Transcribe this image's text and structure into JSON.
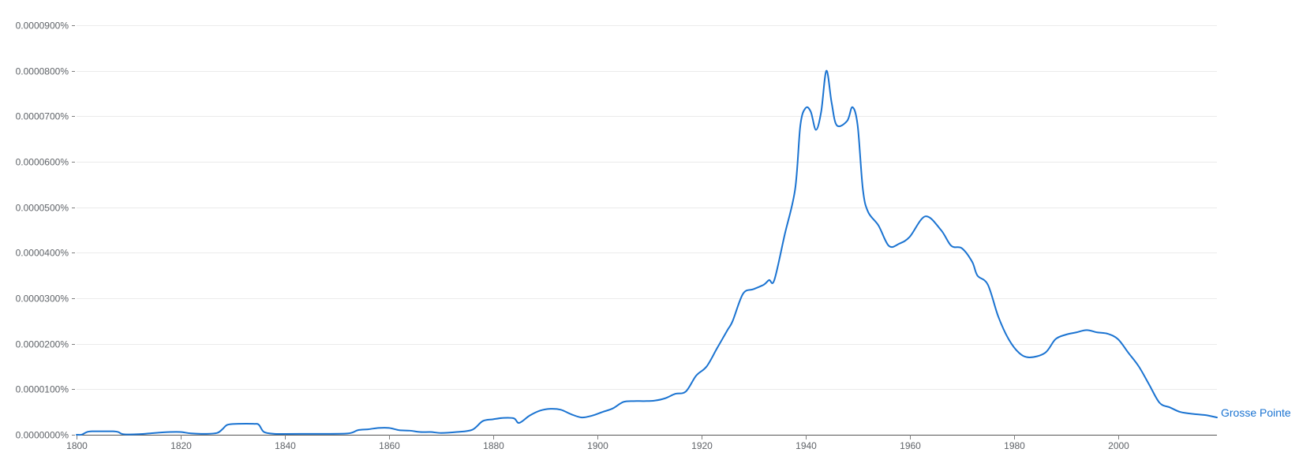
{
  "chart_data": {
    "type": "line",
    "title": "",
    "xlabel": "",
    "ylabel": "",
    "xlim": [
      1800,
      2019
    ],
    "ylim": [
      0,
      9e-07
    ],
    "x_ticks": [
      1800,
      1820,
      1840,
      1860,
      1880,
      1900,
      1920,
      1940,
      1960,
      1980,
      2000
    ],
    "x_tick_labels": [
      "1800",
      "1820",
      "1840",
      "1860",
      "1880",
      "1900",
      "1920",
      "1940",
      "1960",
      "1980",
      "2000"
    ],
    "y_ticks": [
      0,
      1e-07,
      2e-07,
      3e-07,
      4e-07,
      5e-07,
      6e-07,
      7e-07,
      8e-07,
      9e-07
    ],
    "y_tick_labels": [
      "0.0000000%",
      "0.0000100%",
      "0.0000200%",
      "0.0000300%",
      "0.0000400%",
      "0.0000500%",
      "0.0000600%",
      "0.0000700%",
      "0.0000800%",
      "0.0000900%"
    ],
    "grid": true,
    "legend": "series label at right end of line",
    "series": [
      {
        "name": "Grosse Pointe",
        "color": "#1a73d1",
        "points": [
          [
            1800,
            0.0
          ],
          [
            1801,
            3e-10
          ],
          [
            1802,
            6e-09
          ],
          [
            1803,
            7.5e-09
          ],
          [
            1805,
            7.5e-09
          ],
          [
            1807,
            7.5e-09
          ],
          [
            1808,
            6e-09
          ],
          [
            1809,
            1.2e-09
          ],
          [
            1812,
            1.2e-09
          ],
          [
            1815,
            4e-09
          ],
          [
            1818,
            6e-09
          ],
          [
            1820,
            6e-09
          ],
          [
            1822,
            3e-09
          ],
          [
            1825,
            2e-09
          ],
          [
            1827,
            4e-09
          ],
          [
            1828,
            1.2e-08
          ],
          [
            1829,
            2.2e-08
          ],
          [
            1831,
            2.4e-08
          ],
          [
            1834,
            2.4e-08
          ],
          [
            1835,
            2.2e-08
          ],
          [
            1836,
            6e-09
          ],
          [
            1838,
            2e-09
          ],
          [
            1840,
            1.8e-09
          ],
          [
            1845,
            2e-09
          ],
          [
            1852,
            2.8e-09
          ],
          [
            1854,
            1e-08
          ],
          [
            1856,
            1.2e-08
          ],
          [
            1858,
            1.5e-08
          ],
          [
            1860,
            1.5e-08
          ],
          [
            1862,
            1e-08
          ],
          [
            1864,
            9e-09
          ],
          [
            1866,
            6e-09
          ],
          [
            1868,
            6e-09
          ],
          [
            1870,
            4e-09
          ],
          [
            1873,
            6e-09
          ],
          [
            1876,
            1.1e-08
          ],
          [
            1878,
            3e-08
          ],
          [
            1880,
            3.4e-08
          ],
          [
            1882,
            3.7e-08
          ],
          [
            1884,
            3.6e-08
          ],
          [
            1885,
            2.6e-08
          ],
          [
            1887,
            4.2e-08
          ],
          [
            1889,
            5.3e-08
          ],
          [
            1891,
            5.7e-08
          ],
          [
            1893,
            5.5e-08
          ],
          [
            1895,
            4.5e-08
          ],
          [
            1897,
            3.8e-08
          ],
          [
            1899,
            4.2e-08
          ],
          [
            1901,
            5e-08
          ],
          [
            1903,
            5.8e-08
          ],
          [
            1905,
            7.2e-08
          ],
          [
            1907,
            7.4e-08
          ],
          [
            1909,
            7.4e-08
          ],
          [
            1911,
            7.5e-08
          ],
          [
            1913,
            8e-08
          ],
          [
            1915,
            9e-08
          ],
          [
            1917,
            9.5e-08
          ],
          [
            1919,
            1.3e-07
          ],
          [
            1921,
            1.5e-07
          ],
          [
            1923,
            1.9e-07
          ],
          [
            1925,
            2.3e-07
          ],
          [
            1926,
            2.5e-07
          ],
          [
            1928,
            3.1e-07
          ],
          [
            1930,
            3.2e-07
          ],
          [
            1932,
            3.3e-07
          ],
          [
            1933,
            3.4e-07
          ],
          [
            1934,
            3.4e-07
          ],
          [
            1936,
            4.4e-07
          ],
          [
            1938,
            5.4e-07
          ],
          [
            1939,
            6.8e-07
          ],
          [
            1940,
            7.18e-07
          ],
          [
            1941,
            7.1e-07
          ],
          [
            1942,
            6.7e-07
          ],
          [
            1943,
            7.1e-07
          ],
          [
            1944,
            8e-07
          ],
          [
            1945,
            7.3e-07
          ],
          [
            1946,
            6.8e-07
          ],
          [
            1948,
            6.9e-07
          ],
          [
            1949,
            7.2e-07
          ],
          [
            1950,
            6.8e-07
          ],
          [
            1951,
            5.4e-07
          ],
          [
            1952,
            4.9e-07
          ],
          [
            1954,
            4.6e-07
          ],
          [
            1956,
            4.15e-07
          ],
          [
            1958,
            4.2e-07
          ],
          [
            1960,
            4.35e-07
          ],
          [
            1963,
            4.8e-07
          ],
          [
            1966,
            4.5e-07
          ],
          [
            1968,
            4.15e-07
          ],
          [
            1970,
            4.1e-07
          ],
          [
            1972,
            3.8e-07
          ],
          [
            1973,
            3.5e-07
          ],
          [
            1975,
            3.3e-07
          ],
          [
            1977,
            2.6e-07
          ],
          [
            1979,
            2.1e-07
          ],
          [
            1981,
            1.8e-07
          ],
          [
            1983,
            1.7e-07
          ],
          [
            1986,
            1.8e-07
          ],
          [
            1988,
            2.1e-07
          ],
          [
            1990,
            2.2e-07
          ],
          [
            1992,
            2.25e-07
          ],
          [
            1994,
            2.3e-07
          ],
          [
            1996,
            2.25e-07
          ],
          [
            1998,
            2.22e-07
          ],
          [
            2000,
            2.1e-07
          ],
          [
            2002,
            1.8e-07
          ],
          [
            2004,
            1.5e-07
          ],
          [
            2006,
            1.1e-07
          ],
          [
            2008,
            7e-08
          ],
          [
            2010,
            6e-08
          ],
          [
            2012,
            5e-08
          ],
          [
            2015,
            4.5e-08
          ],
          [
            2017,
            4.3e-08
          ],
          [
            2019,
            3.8e-08
          ]
        ]
      }
    ]
  }
}
